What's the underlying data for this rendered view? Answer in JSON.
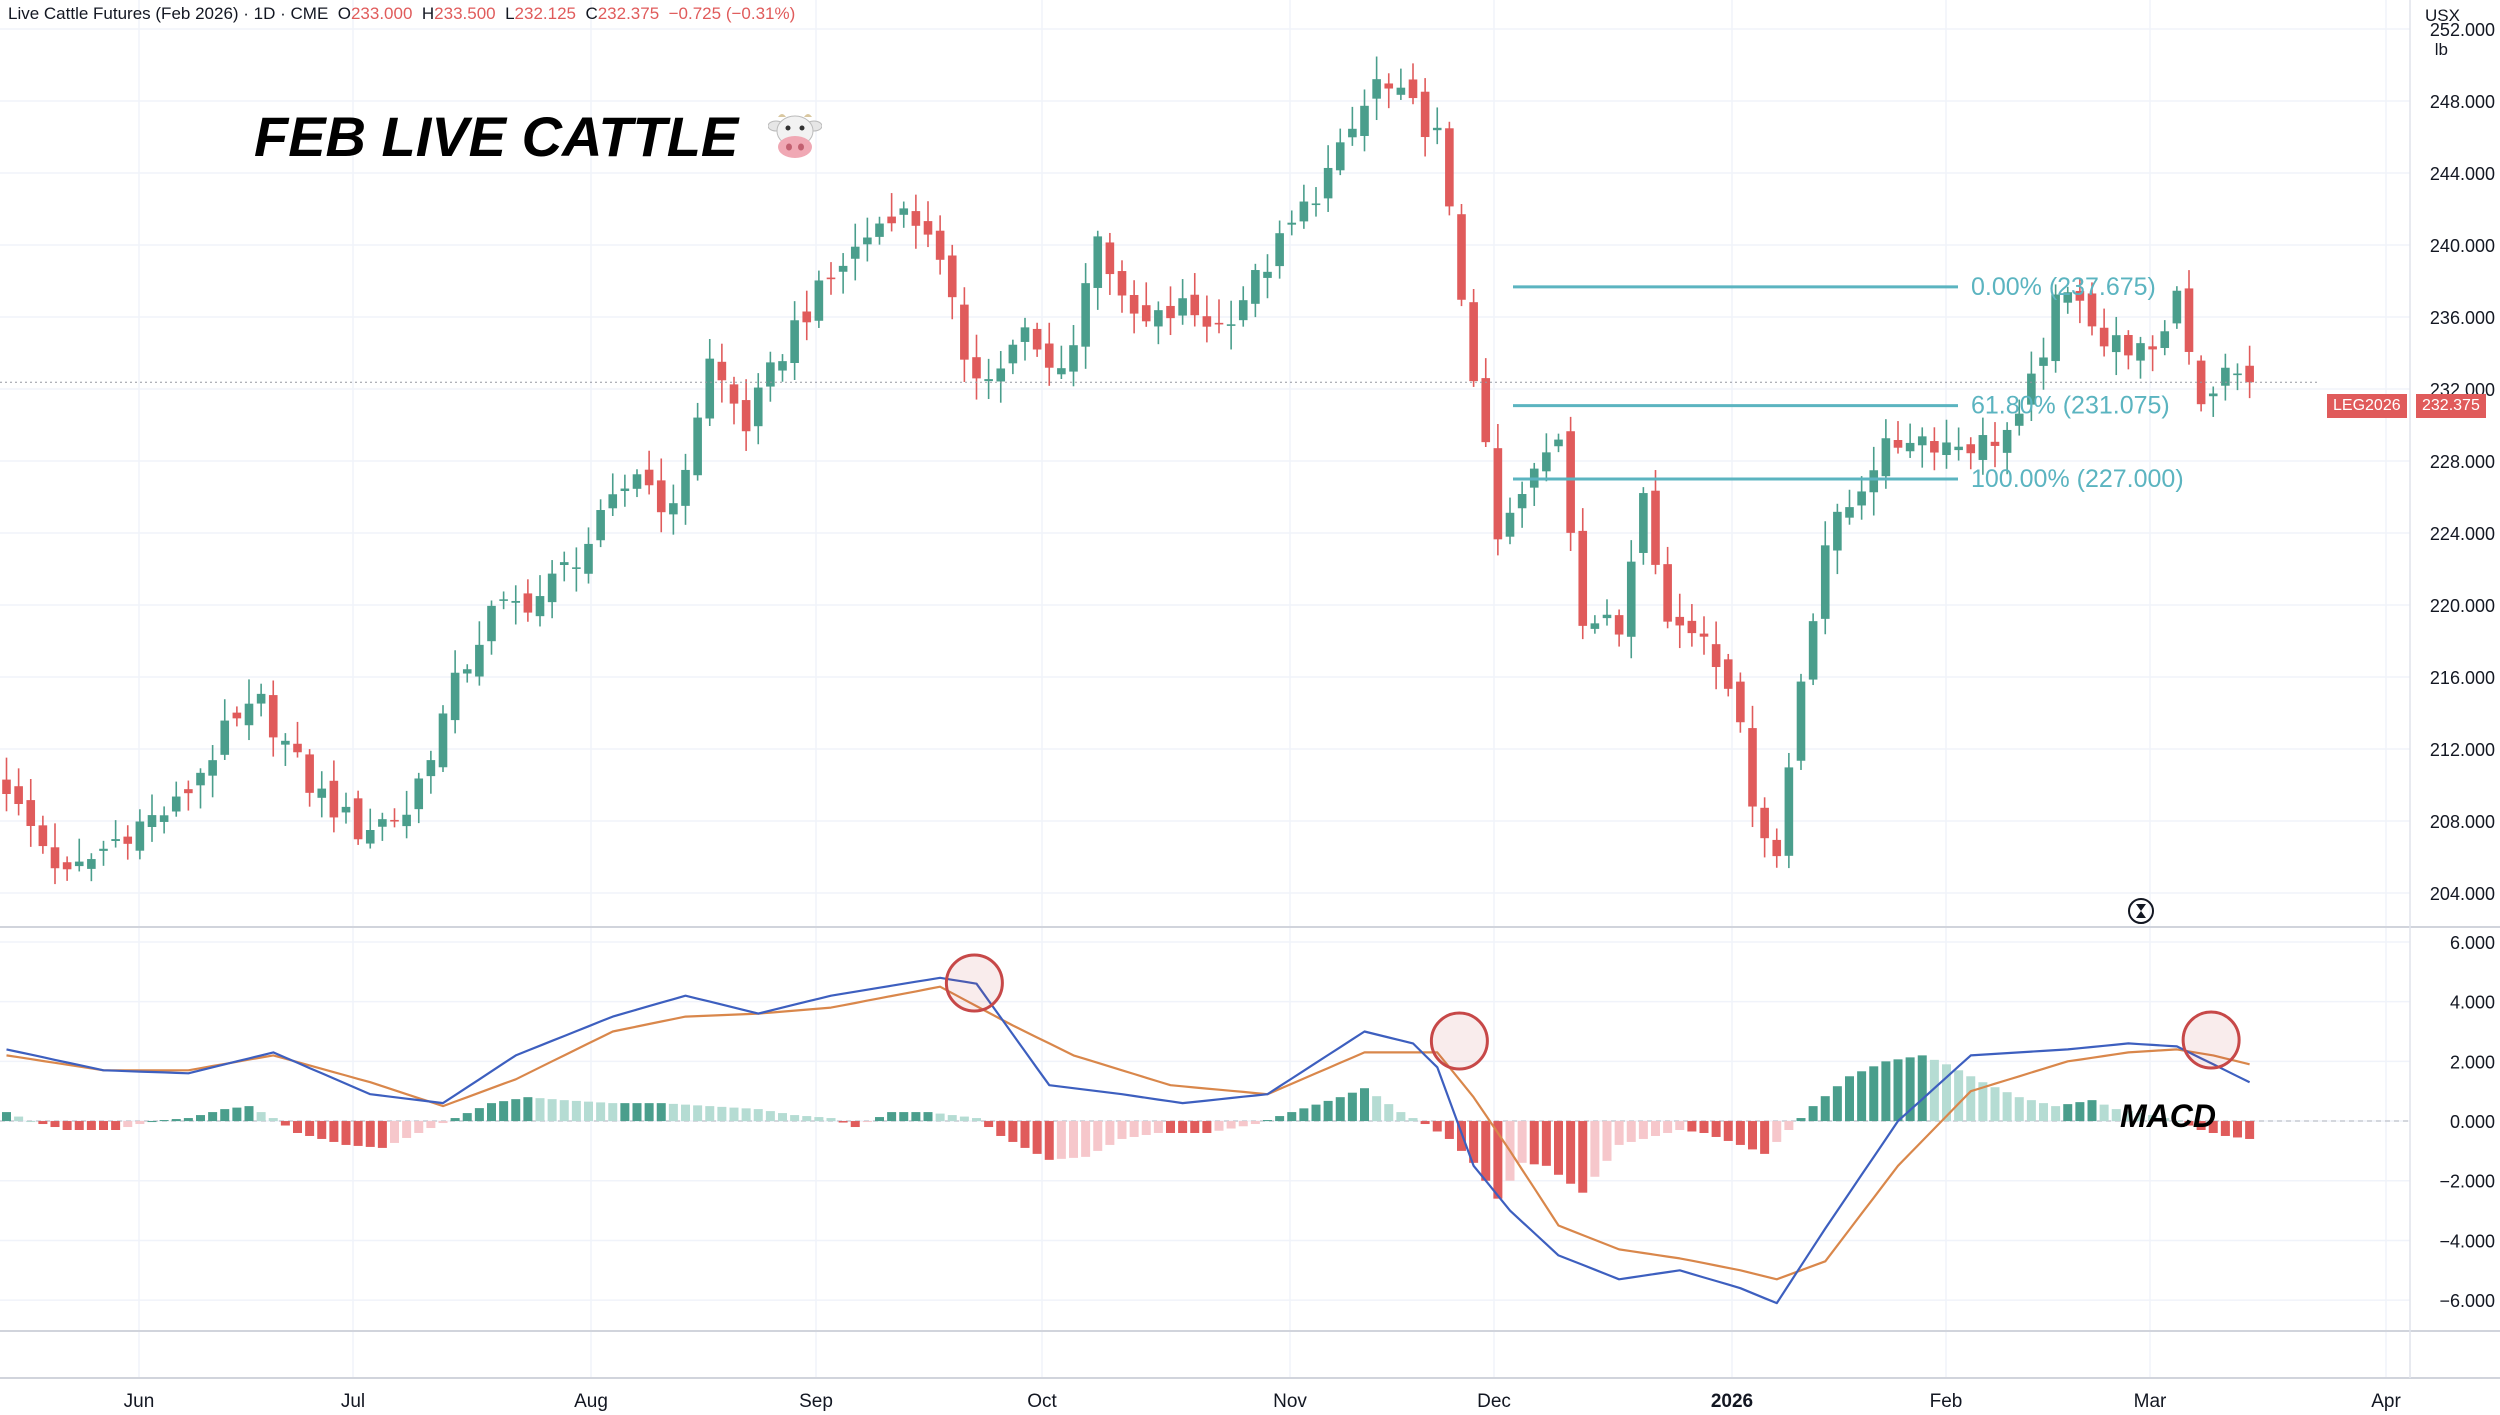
{
  "header": {
    "symbol_line": "Live Cattle Futures (Feb 2026) · 1D · CME",
    "open_label": "O",
    "open": "233.000",
    "high_label": "H",
    "high": "233.500",
    "low_label": "L",
    "low": "232.125",
    "close_label": "C",
    "close": "232.375",
    "change": "−0.725 (−0.31%)",
    "currency": "USX",
    "unit": "lb"
  },
  "annotation": {
    "title": "FEB LIVE CATTLE",
    "title_icon": "cow-face-icon",
    "macd_label": "MACD"
  },
  "price_tag": {
    "symbol": "LEG2026",
    "value": "232.375"
  },
  "colors": {
    "up": "#4a9e8c",
    "down": "#e05b5b",
    "fib": "#5bb4c0",
    "macd_line": "#3d5fbf",
    "signal_line": "#d9874b",
    "hist_up_strong": "#4a9e8c",
    "hist_up_weak": "#b5dcd3",
    "hist_down_strong": "#e05b5b",
    "hist_down_weak": "#f6c7cb",
    "circle": "#c74848"
  },
  "chart_data": [
    {
      "type": "candlestick",
      "title": "Live Cattle Futures (Feb 2026) · 1D · CME",
      "x_axis_labels": [
        "Jun",
        "Jul",
        "Aug",
        "Sep",
        "Oct",
        "Nov",
        "Dec",
        "2026",
        "Feb",
        "Mar",
        "Apr"
      ],
      "y_ticks": [
        "252.000",
        "248.000",
        "244.000",
        "240.000",
        "236.000",
        "232.000",
        "228.000",
        "224.000",
        "220.000",
        "216.000",
        "212.000",
        "208.000",
        "204.000"
      ],
      "ylim": [
        202.5,
        252.5
      ],
      "last_price": 232.375,
      "fibonacci": [
        {
          "label": "0.00% (237.675)",
          "value": 237.675
        },
        {
          "label": "61.80% (231.075)",
          "value": 231.075
        },
        {
          "label": "100.00% (227.000)",
          "value": 227.0
        }
      ],
      "anchors_close": [
        [
          0,
          209.5
        ],
        [
          5,
          204.8
        ],
        [
          10,
          207.5
        ],
        [
          14,
          208.8
        ],
        [
          18,
          212.8
        ],
        [
          21,
          214.5
        ],
        [
          25,
          210.0
        ],
        [
          29,
          207.5
        ],
        [
          33,
          208.5
        ],
        [
          37,
          215.5
        ],
        [
          40,
          219.5
        ],
        [
          44,
          220.5
        ],
        [
          48,
          223.5
        ],
        [
          52,
          227.5
        ],
        [
          55,
          225.0
        ],
        [
          58,
          233.5
        ],
        [
          61,
          230.0
        ],
        [
          65,
          235.5
        ],
        [
          69,
          239.0
        ],
        [
          73,
          242.0
        ],
        [
          76,
          241.0
        ],
        [
          79,
          234.0
        ],
        [
          81,
          232.5
        ],
        [
          84,
          235.0
        ],
        [
          86,
          233.0
        ],
        [
          88,
          234.5
        ],
        [
          90,
          241.0
        ],
        [
          92,
          236.5
        ],
        [
          94,
          235.5
        ],
        [
          97,
          236.5
        ],
        [
          100,
          235.5
        ],
        [
          103,
          238.0
        ],
        [
          106,
          241.0
        ],
        [
          110,
          245.0
        ],
        [
          113,
          249.0
        ],
        [
          116,
          247.5
        ],
        [
          118,
          246.0
        ],
        [
          119,
          241.5
        ],
        [
          121,
          233.0
        ],
        [
          123,
          223.5
        ],
        [
          125,
          226.0
        ],
        [
          128,
          229.5
        ],
        [
          130,
          219.5
        ],
        [
          133,
          218.5
        ],
        [
          135,
          227.0
        ],
        [
          137,
          219.0
        ],
        [
          140,
          218.5
        ],
        [
          142,
          216.0
        ],
        [
          144,
          209.5
        ],
        [
          145,
          207.5
        ],
        [
          146,
          206.0
        ],
        [
          148,
          216.0
        ],
        [
          150,
          223.5
        ],
        [
          152,
          225.5
        ],
        [
          154,
          228.0
        ],
        [
          157,
          229.5
        ],
        [
          160,
          229.0
        ],
        [
          163,
          229.0
        ],
        [
          166,
          230.0
        ],
        [
          169,
          236.5
        ],
        [
          171,
          237.5
        ],
        [
          173,
          234.5
        ],
        [
          175,
          234.5
        ],
        [
          177,
          233.5
        ],
        [
          179,
          237.5
        ],
        [
          181,
          231.5
        ],
        [
          183,
          232.8
        ],
        [
          185,
          232.4
        ]
      ]
    },
    {
      "type": "line",
      "title": "MACD",
      "y_ticks": [
        "6.000",
        "4.000",
        "2.000",
        "0.000",
        "−2.000",
        "−4.000",
        "−6.000"
      ],
      "ylim": [
        -7.0,
        6.4
      ],
      "series": [
        {
          "name": "MACD",
          "points": [
            [
              0,
              2.4
            ],
            [
              8,
              1.7
            ],
            [
              15,
              1.6
            ],
            [
              22,
              2.3
            ],
            [
              30,
              0.9
            ],
            [
              36,
              0.6
            ],
            [
              42,
              2.2
            ],
            [
              50,
              3.5
            ],
            [
              56,
              4.2
            ],
            [
              62,
              3.6
            ],
            [
              68,
              4.2
            ],
            [
              77,
              4.8
            ],
            [
              80,
              4.6
            ],
            [
              86,
              1.2
            ],
            [
              92,
              0.9
            ],
            [
              97,
              0.6
            ],
            [
              104,
              0.9
            ],
            [
              112,
              3.0
            ],
            [
              116,
              2.6
            ],
            [
              118,
              1.8
            ],
            [
              121,
              -1.5
            ],
            [
              124,
              -3.0
            ],
            [
              128,
              -4.5
            ],
            [
              133,
              -5.3
            ],
            [
              138,
              -5.0
            ],
            [
              143,
              -5.6
            ],
            [
              146,
              -6.1
            ],
            [
              150,
              -3.6
            ],
            [
              156,
              0.0
            ],
            [
              162,
              2.2
            ],
            [
              170,
              2.4
            ],
            [
              175,
              2.6
            ],
            [
              179,
              2.5
            ],
            [
              182,
              1.9
            ],
            [
              185,
              1.3
            ]
          ]
        },
        {
          "name": "Signal",
          "points": [
            [
              0,
              2.2
            ],
            [
              8,
              1.7
            ],
            [
              15,
              1.7
            ],
            [
              22,
              2.2
            ],
            [
              30,
              1.3
            ],
            [
              36,
              0.5
            ],
            [
              42,
              1.4
            ],
            [
              50,
              3.0
            ],
            [
              56,
              3.5
            ],
            [
              62,
              3.6
            ],
            [
              68,
              3.8
            ],
            [
              77,
              4.5
            ],
            [
              83,
              3.2
            ],
            [
              88,
              2.2
            ],
            [
              96,
              1.2
            ],
            [
              104,
              0.9
            ],
            [
              112,
              2.3
            ],
            [
              118,
              2.3
            ],
            [
              121,
              0.8
            ],
            [
              124,
              -1.0
            ],
            [
              128,
              -3.5
            ],
            [
              133,
              -4.3
            ],
            [
              138,
              -4.6
            ],
            [
              143,
              -5.0
            ],
            [
              146,
              -5.3
            ],
            [
              150,
              -4.7
            ],
            [
              156,
              -1.5
            ],
            [
              162,
              1.0
            ],
            [
              170,
              2.0
            ],
            [
              175,
              2.3
            ],
            [
              179,
              2.4
            ],
            [
              182,
              2.2
            ],
            [
              185,
              1.9
            ]
          ]
        }
      ],
      "histogram_anchors": [
        [
          0,
          0.3
        ],
        [
          2,
          0.0
        ],
        [
          5,
          -0.3
        ],
        [
          9,
          -0.3
        ],
        [
          12,
          0.0
        ],
        [
          15,
          0.1
        ],
        [
          18,
          0.4
        ],
        [
          20,
          0.5
        ],
        [
          22,
          0.1
        ],
        [
          24,
          -0.4
        ],
        [
          28,
          -0.8
        ],
        [
          31,
          -0.9
        ],
        [
          34,
          -0.4
        ],
        [
          37,
          0.1
        ],
        [
          40,
          0.6
        ],
        [
          43,
          0.8
        ],
        [
          46,
          0.7
        ],
        [
          50,
          0.6
        ],
        [
          54,
          0.6
        ],
        [
          58,
          0.5
        ],
        [
          62,
          0.4
        ],
        [
          65,
          0.2
        ],
        [
          68,
          0.1
        ],
        [
          70,
          -0.2
        ],
        [
          73,
          0.3
        ],
        [
          76,
          0.3
        ],
        [
          80,
          0.1
        ],
        [
          82,
          -0.5
        ],
        [
          86,
          -1.3
        ],
        [
          89,
          -1.2
        ],
        [
          92,
          -0.6
        ],
        [
          95,
          -0.4
        ],
        [
          99,
          -0.4
        ],
        [
          103,
          -0.1
        ],
        [
          106,
          0.3
        ],
        [
          110,
          0.8
        ],
        [
          112,
          1.1
        ],
        [
          115,
          0.3
        ],
        [
          117,
          -0.1
        ],
        [
          119,
          -0.6
        ],
        [
          121,
          -1.4
        ],
        [
          123,
          -2.6
        ],
        [
          125,
          -1.4
        ],
        [
          127,
          -1.5
        ],
        [
          130,
          -2.4
        ],
        [
          133,
          -0.8
        ],
        [
          135,
          -0.6
        ],
        [
          138,
          -0.3
        ],
        [
          140,
          -0.4
        ],
        [
          143,
          -0.8
        ],
        [
          145,
          -1.1
        ],
        [
          147,
          -0.3
        ],
        [
          149,
          0.5
        ],
        [
          152,
          1.5
        ],
        [
          155,
          2.0
        ],
        [
          158,
          2.2
        ],
        [
          160,
          1.9
        ],
        [
          163,
          1.3
        ],
        [
          166,
          0.8
        ],
        [
          169,
          0.5
        ],
        [
          172,
          0.7
        ],
        [
          174,
          0.4
        ],
        [
          177,
          0.2
        ],
        [
          179,
          0.0
        ],
        [
          181,
          -0.3
        ],
        [
          183,
          -0.5
        ],
        [
          185,
          -0.6
        ]
      ],
      "circled_crossovers": [
        79,
        119,
        181
      ]
    }
  ]
}
